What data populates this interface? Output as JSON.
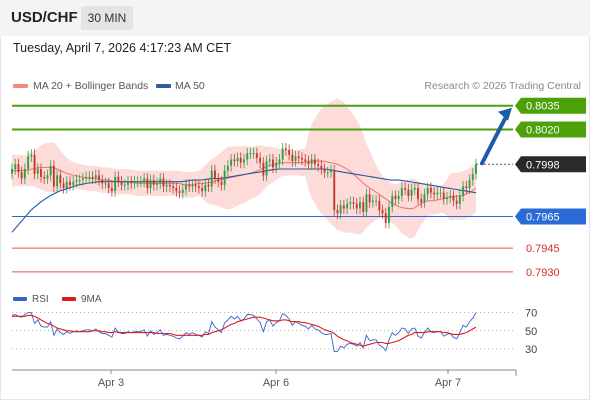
{
  "header": {
    "symbol": "USD/CHF",
    "timeframe": "30 MIN"
  },
  "timestamp": "Tuesday, April 7, 2026 4:17:23 AM CET",
  "legend": {
    "items": [
      {
        "label": "MA 20 + Bollinger Bands",
        "color": "#f08a80"
      },
      {
        "label": "MA 50",
        "color": "#2f5d9c"
      }
    ],
    "credit": "Research © 2026 Trading Central"
  },
  "colors": {
    "resistance": "#4ca00a",
    "pivot": "#2b6bd6",
    "support": "#e85555",
    "price": "#2a2a2a",
    "arrow": "#1f5aa8",
    "up_candle": "#2f9e44",
    "down_candle": "#c0392b",
    "band_fill": "#fbd5d2",
    "rsi": "#3366cc",
    "rsi_ma": "#e01b1b"
  },
  "levels": [
    {
      "label": "0.8035",
      "value": 0.8035,
      "kind": "resistance"
    },
    {
      "label": "0.8020",
      "value": 0.802,
      "kind": "resistance"
    },
    {
      "label": "0.7998",
      "value": 0.7998,
      "kind": "price"
    },
    {
      "label": "0.7965",
      "value": 0.7965,
      "kind": "pivot"
    },
    {
      "label": "0.7945",
      "value": 0.7945,
      "kind": "support"
    },
    {
      "label": "0.7930",
      "value": 0.793,
      "kind": "support"
    }
  ],
  "arrow": {
    "direction": "up",
    "from": 0.7998,
    "to": 0.8035
  },
  "rsi_legend": [
    {
      "label": "RSI",
      "color": "#3366cc"
    },
    {
      "label": "9MA",
      "color": "#e01b1b"
    }
  ],
  "rsi_ticks": [
    "70",
    "50",
    "30"
  ],
  "x_labels": [
    "Apr 3",
    "Apr 6",
    "Apr 7"
  ],
  "chart_data": {
    "type": "candlestick",
    "title": "USD/CHF 30 MIN",
    "ylim": [
      0.7928,
      0.8038
    ],
    "closes": [
      0.7995,
      0.7998,
      0.7993,
      0.7989,
      0.7995,
      0.8003,
      0.8004,
      0.7992,
      0.7995,
      0.799,
      0.7989,
      0.7991,
      0.7997,
      0.7984,
      0.7991,
      0.7986,
      0.7983,
      0.7987,
      0.7985,
      0.7987,
      0.7988,
      0.7988,
      0.7989,
      0.799,
      0.799,
      0.7989,
      0.7991,
      0.7988,
      0.7986,
      0.7986,
      0.7983,
      0.7981,
      0.799,
      0.7987,
      0.7985,
      0.7985,
      0.7987,
      0.7986,
      0.7987,
      0.7987,
      0.7987,
      0.7989,
      0.7983,
      0.7988,
      0.7985,
      0.7986,
      0.7989,
      0.7984,
      0.7985,
      0.7984,
      0.7983,
      0.7981,
      0.798,
      0.7982,
      0.7985,
      0.7984,
      0.7985,
      0.7984,
      0.7983,
      0.7981,
      0.7985,
      0.7984,
      0.7994,
      0.7989,
      0.7987,
      0.7985,
      0.7994,
      0.7997,
      0.8001,
      0.8,
      0.8002,
      0.7999,
      0.8001,
      0.8005,
      0.8005,
      0.8005,
      0.8002,
      0.7999,
      0.7991,
      0.8,
      0.8001,
      0.7996,
      0.7999,
      0.8001,
      0.8008,
      0.8007,
      0.8004,
      0.8,
      0.8003,
      0.8002,
      0.8001,
      0.8,
      0.7998,
      0.8001,
      0.7998,
      0.7997,
      0.7995,
      0.7993,
      0.7993,
      0.7994,
      0.7969,
      0.7967,
      0.7972,
      0.797,
      0.7973,
      0.7974,
      0.7973,
      0.797,
      0.7974,
      0.7968,
      0.7979,
      0.7974,
      0.7975,
      0.7975,
      0.7969,
      0.7967,
      0.7961,
      0.7971,
      0.7978,
      0.7976,
      0.7978,
      0.7983,
      0.7982,
      0.7978,
      0.7982,
      0.7983,
      0.7976,
      0.7974,
      0.7979,
      0.7983,
      0.798,
      0.7979,
      0.798,
      0.798,
      0.7976,
      0.7977,
      0.7978,
      0.7975,
      0.7973,
      0.7978,
      0.7984,
      0.7983,
      0.7988,
      0.7992,
      0.7998
    ],
    "ma20": [
      0.7994,
      0.7994,
      0.7994,
      0.7995,
      0.7996,
      0.7996,
      0.7996,
      0.7994,
      0.7992,
      0.7991,
      0.799,
      0.7989,
      0.7989,
      0.7988,
      0.7988,
      0.7987,
      0.7987,
      0.7987,
      0.7986,
      0.7986,
      0.7986,
      0.7986,
      0.7986,
      0.7986,
      0.7986,
      0.7985,
      0.7985,
      0.7986,
      0.7986,
      0.7987,
      0.7988,
      0.7989,
      0.799,
      0.7991,
      0.7992,
      0.7993,
      0.7995,
      0.7997,
      0.7998,
      0.7999,
      0.7999,
      0.7999,
      0.7999,
      0.8,
      0.8,
      0.8,
      0.7999,
      0.7998,
      0.7996,
      0.7993,
      0.7989,
      0.7985,
      0.7982,
      0.7979,
      0.7976,
      0.7973,
      0.7971,
      0.797,
      0.797,
      0.7973,
      0.7975,
      0.7975,
      0.7976,
      0.7977,
      0.7978,
      0.7978,
      0.798,
      0.7983
    ],
    "ma50": [
      0.7955,
      0.7962,
      0.7969,
      0.7974,
      0.7978,
      0.7981,
      0.7983,
      0.7985,
      0.7986,
      0.7987,
      0.7987,
      0.7987,
      0.7987,
      0.7987,
      0.7987,
      0.7987,
      0.7987,
      0.7987,
      0.7987,
      0.7988,
      0.7988,
      0.7989,
      0.7989,
      0.799,
      0.7991,
      0.7992,
      0.7993,
      0.7994,
      0.7995,
      0.7995,
      0.7995,
      0.7995,
      0.7995,
      0.7995,
      0.7994,
      0.7993,
      0.7992,
      0.7991,
      0.799,
      0.7989,
      0.7988,
      0.7988,
      0.7987,
      0.7986,
      0.7985,
      0.7984,
      0.7983,
      0.7982,
      0.7981,
      0.798
    ],
    "rsi": [
      67,
      68,
      66,
      65,
      68,
      70,
      70,
      58,
      62,
      55,
      54,
      54,
      60,
      45,
      52,
      48,
      46,
      49,
      47,
      49,
      50,
      49,
      50,
      51,
      51,
      50,
      52,
      49,
      47,
      47,
      45,
      43,
      53,
      49,
      47,
      47,
      49,
      48,
      49,
      49,
      49,
      51,
      44,
      50,
      46,
      48,
      51,
      45,
      46,
      45,
      44,
      42,
      41,
      44,
      48,
      46,
      48,
      46,
      45,
      43,
      49,
      47,
      60,
      54,
      51,
      48,
      59,
      62,
      66,
      63,
      66,
      61,
      63,
      68,
      68,
      67,
      63,
      59,
      49,
      60,
      62,
      55,
      59,
      61,
      69,
      67,
      63,
      56,
      60,
      58,
      56,
      55,
      52,
      56,
      52,
      51,
      48,
      46,
      46,
      47,
      27,
      27,
      33,
      31,
      35,
      36,
      35,
      33,
      37,
      31,
      45,
      39,
      40,
      40,
      34,
      32,
      28,
      40,
      48,
      45,
      48,
      53,
      52,
      47,
      52,
      53,
      44,
      42,
      48,
      53,
      49,
      48,
      49,
      49,
      44,
      46,
      47,
      43,
      41,
      48,
      56,
      54,
      60,
      64,
      70
    ],
    "rsi_ma": [
      66,
      66,
      66,
      66,
      66,
      67,
      67,
      66,
      64,
      62,
      60,
      58,
      57,
      55,
      53,
      52,
      51,
      50,
      50,
      49,
      49,
      49,
      49,
      49,
      49,
      50,
      50,
      50,
      49,
      49,
      48,
      48,
      49,
      48,
      48,
      48,
      48,
      48,
      48,
      48,
      48,
      48,
      48,
      48,
      48,
      47,
      47,
      47,
      47,
      47,
      46,
      45,
      45,
      45,
      45,
      45,
      45,
      45,
      45,
      45,
      46,
      46,
      48,
      49,
      50,
      51,
      53,
      55,
      57,
      58,
      60,
      61,
      62,
      63,
      64,
      65,
      65,
      65,
      64,
      63,
      62,
      61,
      61,
      61,
      62,
      62,
      61,
      60,
      60,
      60,
      59,
      59,
      58,
      57,
      56,
      55,
      53,
      51,
      50,
      49,
      47,
      44,
      42,
      40,
      39,
      37,
      36,
      35,
      34,
      33,
      34,
      35,
      36,
      37,
      37,
      37,
      36,
      36,
      37,
      38,
      39,
      41,
      43,
      45,
      46,
      48,
      48,
      48,
      48,
      49,
      49,
      49,
      49,
      49,
      48,
      48,
      47,
      46,
      46,
      46,
      47,
      48,
      50,
      52,
      54
    ],
    "rsi_range": [
      0,
      100
    ],
    "x_labels": [
      "Apr 3",
      "Apr 6",
      "Apr 7"
    ]
  }
}
